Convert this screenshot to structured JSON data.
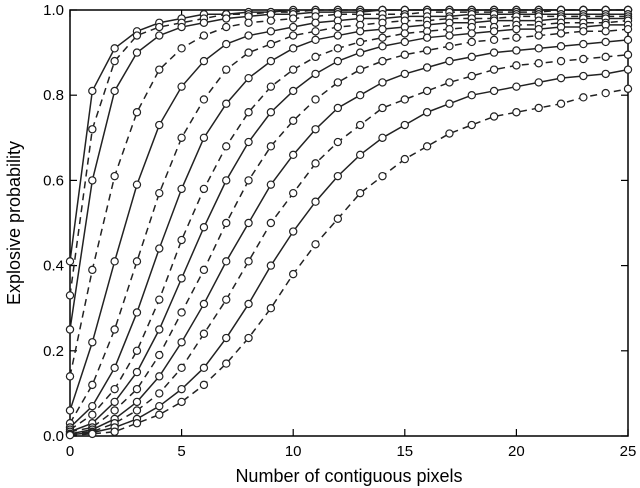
{
  "chart_data": {
    "type": "line",
    "xlabel": "Number of contiguous pixels",
    "ylabel": "Explosive probability",
    "xlim": [
      0,
      25
    ],
    "ylim": [
      0,
      1
    ],
    "x_ticks": [
      0,
      5,
      10,
      15,
      20,
      25
    ],
    "y_ticks": [
      0.0,
      0.2,
      0.4,
      0.6,
      0.8,
      1.0
    ],
    "x_tick_labels": [
      "0",
      "5",
      "10",
      "15",
      "20",
      "25"
    ],
    "y_tick_labels": [
      "0.0",
      "0.2",
      "0.4",
      "0.6",
      "0.8",
      "1.0"
    ],
    "grid": false,
    "marker": "circle",
    "x": [
      0,
      1,
      2,
      3,
      4,
      5,
      6,
      7,
      8,
      9,
      10,
      11,
      12,
      13,
      14,
      15,
      16,
      17,
      18,
      19,
      20,
      21,
      22,
      23,
      24,
      25
    ],
    "series": [
      {
        "style": "solid",
        "values": [
          0.41,
          0.81,
          0.91,
          0.95,
          0.97,
          0.98,
          0.99,
          0.99,
          0.995,
          0.995,
          1,
          1,
          1,
          1,
          1,
          1,
          1,
          1,
          1,
          1,
          1,
          1,
          1,
          1,
          1,
          1
        ]
      },
      {
        "style": "dashed",
        "values": [
          0.33,
          0.72,
          0.88,
          0.94,
          0.96,
          0.97,
          0.98,
          0.99,
          0.99,
          0.995,
          0.995,
          1,
          1,
          1,
          1,
          1,
          1,
          1,
          1,
          1,
          1,
          1,
          1,
          1,
          1,
          1
        ]
      },
      {
        "style": "solid",
        "values": [
          0.25,
          0.6,
          0.81,
          0.9,
          0.94,
          0.96,
          0.97,
          0.98,
          0.985,
          0.99,
          0.99,
          0.995,
          0.995,
          0.995,
          1,
          1,
          1,
          1,
          1,
          1,
          1,
          1,
          1,
          1,
          1,
          1
        ]
      },
      {
        "style": "dashed",
        "values": [
          0.14,
          0.39,
          0.61,
          0.76,
          0.86,
          0.91,
          0.94,
          0.96,
          0.97,
          0.975,
          0.98,
          0.985,
          0.99,
          0.99,
          0.99,
          0.99,
          0.995,
          0.995,
          0.995,
          0.995,
          0.995,
          0.995,
          1,
          1,
          1,
          1
        ]
      },
      {
        "style": "solid",
        "values": [
          0.06,
          0.22,
          0.41,
          0.59,
          0.73,
          0.82,
          0.88,
          0.92,
          0.94,
          0.95,
          0.96,
          0.97,
          0.975,
          0.98,
          0.98,
          0.985,
          0.985,
          0.985,
          0.99,
          0.99,
          0.99,
          0.99,
          0.99,
          0.99,
          0.99,
          0.99
        ]
      },
      {
        "style": "dashed",
        "values": [
          0.03,
          0.12,
          0.25,
          0.41,
          0.57,
          0.7,
          0.79,
          0.86,
          0.9,
          0.92,
          0.94,
          0.95,
          0.96,
          0.965,
          0.97,
          0.975,
          0.975,
          0.98,
          0.98,
          0.98,
          0.985,
          0.985,
          0.985,
          0.985,
          0.985,
          0.985
        ]
      },
      {
        "style": "solid",
        "values": [
          0.02,
          0.07,
          0.16,
          0.29,
          0.44,
          0.58,
          0.7,
          0.78,
          0.84,
          0.88,
          0.91,
          0.93,
          0.94,
          0.95,
          0.955,
          0.96,
          0.965,
          0.97,
          0.97,
          0.975,
          0.975,
          0.975,
          0.98,
          0.98,
          0.98,
          0.98
        ]
      },
      {
        "style": "dashed",
        "values": [
          0.015,
          0.05,
          0.11,
          0.2,
          0.32,
          0.46,
          0.58,
          0.68,
          0.76,
          0.82,
          0.86,
          0.89,
          0.91,
          0.925,
          0.935,
          0.945,
          0.95,
          0.955,
          0.96,
          0.96,
          0.965,
          0.965,
          0.97,
          0.97,
          0.97,
          0.975
        ]
      },
      {
        "style": "solid",
        "values": [
          0.01,
          0.03,
          0.08,
          0.15,
          0.25,
          0.37,
          0.49,
          0.6,
          0.69,
          0.76,
          0.81,
          0.85,
          0.88,
          0.9,
          0.915,
          0.925,
          0.935,
          0.94,
          0.945,
          0.95,
          0.955,
          0.955,
          0.96,
          0.96,
          0.965,
          0.965
        ]
      },
      {
        "style": "dashed",
        "values": [
          0.01,
          0.02,
          0.06,
          0.11,
          0.19,
          0.29,
          0.39,
          0.5,
          0.6,
          0.68,
          0.74,
          0.79,
          0.83,
          0.86,
          0.88,
          0.895,
          0.905,
          0.915,
          0.925,
          0.93,
          0.935,
          0.94,
          0.945,
          0.95,
          0.95,
          0.955
        ]
      },
      {
        "style": "solid",
        "values": [
          0.005,
          0.015,
          0.04,
          0.08,
          0.14,
          0.22,
          0.31,
          0.41,
          0.5,
          0.59,
          0.66,
          0.72,
          0.77,
          0.8,
          0.83,
          0.85,
          0.865,
          0.88,
          0.89,
          0.9,
          0.905,
          0.91,
          0.915,
          0.92,
          0.925,
          0.93
        ]
      },
      {
        "style": "dashed",
        "values": [
          0.005,
          0.01,
          0.03,
          0.06,
          0.1,
          0.16,
          0.24,
          0.32,
          0.41,
          0.5,
          0.57,
          0.64,
          0.69,
          0.73,
          0.77,
          0.79,
          0.81,
          0.83,
          0.845,
          0.86,
          0.87,
          0.875,
          0.88,
          0.885,
          0.89,
          0.895
        ]
      },
      {
        "style": "solid",
        "values": [
          0.003,
          0.008,
          0.02,
          0.04,
          0.07,
          0.11,
          0.16,
          0.23,
          0.31,
          0.4,
          0.48,
          0.55,
          0.61,
          0.66,
          0.7,
          0.73,
          0.76,
          0.78,
          0.8,
          0.81,
          0.82,
          0.83,
          0.84,
          0.845,
          0.85,
          0.86
        ]
      },
      {
        "style": "dashed",
        "values": [
          0.002,
          0.005,
          0.01,
          0.03,
          0.05,
          0.08,
          0.12,
          0.17,
          0.23,
          0.3,
          0.38,
          0.45,
          0.51,
          0.57,
          0.61,
          0.65,
          0.68,
          0.71,
          0.73,
          0.75,
          0.76,
          0.77,
          0.78,
          0.795,
          0.805,
          0.815
        ]
      }
    ]
  }
}
